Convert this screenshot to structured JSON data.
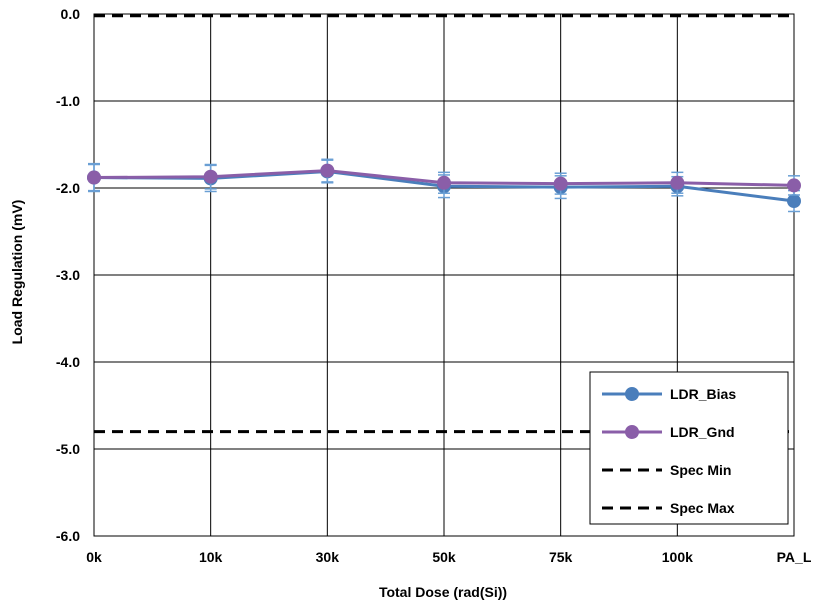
{
  "chart_data": {
    "type": "line",
    "title": "",
    "xlabel": "Total Dose (rad(Si))",
    "ylabel": "Load Regulation (mV)",
    "categories": [
      "0k",
      "10k",
      "30k",
      "50k",
      "75k",
      "100k",
      "PA_L"
    ],
    "ylim": [
      -6.0,
      0.0
    ],
    "yticks": [
      0.0,
      -1.0,
      -2.0,
      -3.0,
      -4.0,
      -5.0,
      -6.0
    ],
    "ytick_labels": [
      "0.0",
      "-1.0",
      "-2.0",
      "-3.0",
      "-4.0",
      "-5.0",
      "-6.0"
    ],
    "grid": true,
    "legend_position": "bottom-right",
    "series": [
      {
        "name": "LDR_Bias",
        "color": "#4a7ebb",
        "marker": "circle",
        "values": [
          -1.88,
          -1.89,
          -1.81,
          -1.98,
          -1.99,
          -1.98,
          -2.15
        ],
        "error": [
          0.15,
          0.15,
          0.13,
          0.13,
          0.13,
          0.11,
          0.12
        ]
      },
      {
        "name": "LDR_Gnd",
        "color": "#8a5ea8",
        "marker": "circle",
        "values": [
          -1.88,
          -1.87,
          -1.8,
          -1.94,
          -1.95,
          -1.94,
          -1.97
        ],
        "error": [
          0.16,
          0.14,
          0.13,
          0.12,
          0.12,
          0.12,
          0.11
        ]
      },
      {
        "name": "Spec Min",
        "color": "#000000",
        "dashed": true,
        "values": [
          -4.8,
          -4.8,
          -4.8,
          -4.8,
          -4.8,
          -4.8,
          -4.8
        ]
      },
      {
        "name": "Spec Max",
        "color": "#000000",
        "dashed": true,
        "values": [
          -0.02,
          -0.02,
          -0.02,
          -0.02,
          -0.02,
          -0.02,
          -0.02
        ]
      }
    ]
  }
}
